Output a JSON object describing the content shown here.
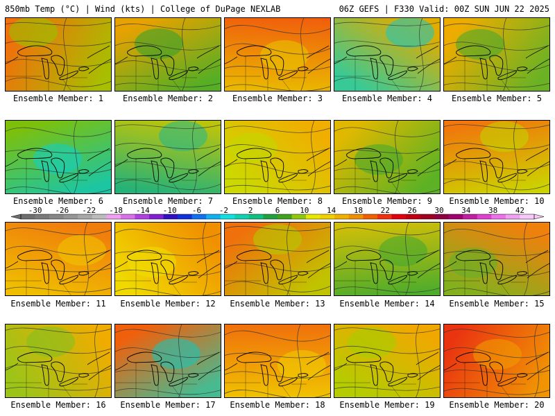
{
  "header": {
    "left": "850mb Temp (°C) | Wind (kts) | College of DuPage NEXLAB",
    "right": "06Z GEFS | F330 Valid: 00Z SUN JUN 22 2025"
  },
  "members": [
    {
      "label": "Ensemble Member: 1",
      "base": "#f0a000",
      "hot": "#f06010",
      "cool": "#90c800"
    },
    {
      "label": "Ensemble Member: 2",
      "base": "#c8d800",
      "hot": "#f09000",
      "cool": "#30a030"
    },
    {
      "label": "Ensemble Member: 3",
      "base": "#f09000",
      "hot": "#f05010",
      "cool": "#e8c800"
    },
    {
      "label": "Ensemble Member: 4",
      "base": "#b0d000",
      "hot": "#f0a000",
      "cool": "#10c8c8"
    },
    {
      "label": "Ensemble Member: 5",
      "base": "#e8d000",
      "hot": "#f0a000",
      "cool": "#40a830"
    },
    {
      "label": "Ensemble Member: 6",
      "base": "#40a830",
      "hot": "#90c800",
      "cool": "#10d0c8"
    },
    {
      "label": "Ensemble Member: 7",
      "base": "#30a030",
      "hot": "#e8d000",
      "cool": "#20b890"
    },
    {
      "label": "Ensemble Member: 8",
      "base": "#f0d800",
      "hot": "#f0a000",
      "cool": "#c0d800"
    },
    {
      "label": "Ensemble Member: 9",
      "base": "#b0d000",
      "hot": "#f0b000",
      "cool": "#40a830"
    },
    {
      "label": "Ensemble Member: 10",
      "base": "#f0c000",
      "hot": "#f06010",
      "cool": "#c0d800"
    },
    {
      "label": "Ensemble Member: 11",
      "base": "#f0a000",
      "hot": "#f07010",
      "cool": "#f0c800"
    },
    {
      "label": "Ensemble Member: 12",
      "base": "#f0c000",
      "hot": "#f08000",
      "cool": "#f0e000"
    },
    {
      "label": "Ensemble Member: 13",
      "base": "#f0a000",
      "hot": "#f06010",
      "cool": "#b0d000"
    },
    {
      "label": "Ensemble Member: 14",
      "base": "#70b820",
      "hot": "#f0c000",
      "cool": "#40a830"
    },
    {
      "label": "Ensemble Member: 15",
      "base": "#f0b000",
      "hot": "#f07010",
      "cool": "#60b028"
    },
    {
      "label": "Ensemble Member: 16",
      "base": "#f0d000",
      "hot": "#f0a000",
      "cool": "#80c020"
    },
    {
      "label": "Ensemble Member: 17",
      "base": "#f09000",
      "hot": "#f05010",
      "cool": "#10c8c0"
    },
    {
      "label": "Ensemble Member: 18",
      "base": "#f0a000",
      "hot": "#f06010",
      "cool": "#f0d000"
    },
    {
      "label": "Ensemble Member: 19",
      "base": "#f0c000",
      "hot": "#f0a000",
      "cool": "#a0d000"
    },
    {
      "label": "Ensemble Member: 20",
      "base": "#f07010",
      "hot": "#e82010",
      "cool": "#f0a000"
    }
  ],
  "colorbar": {
    "ticks": [
      "-30",
      "-26",
      "-22",
      "-18",
      "-14",
      "-10",
      "-6",
      "-2",
      "2",
      "6",
      "10",
      "14",
      "18",
      "22",
      "26",
      "30",
      "34",
      "38",
      "42"
    ],
    "colors": [
      "#6e6e6e",
      "#7a7a7a",
      "#878787",
      "#969696",
      "#a8a8a8",
      "#bcbcbc",
      "#f0a0f0",
      "#d870e8",
      "#b040e0",
      "#8020d0",
      "#3010c0",
      "#1030d8",
      "#1070f0",
      "#10b0f0",
      "#10e0e0",
      "#10d0b0",
      "#10c080",
      "#20a040",
      "#40a020",
      "#90c810",
      "#e8e800",
      "#f0d000",
      "#f0b000",
      "#f09000",
      "#f06000",
      "#f03010",
      "#e00010",
      "#c00010",
      "#a00020",
      "#900040",
      "#a00070",
      "#c020a0",
      "#e040d0",
      "#f070e8",
      "#f0a0f0",
      "#f8c8f8"
    ]
  }
}
